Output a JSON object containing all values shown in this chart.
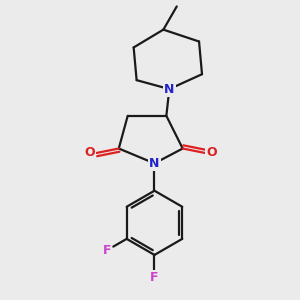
{
  "background_color": "#ebebeb",
  "bond_color": "#1a1a1a",
  "nitrogen_color": "#2222cc",
  "oxygen_color": "#dd2020",
  "fluorine_color": "#cc44cc",
  "bond_width": 1.6,
  "figsize": [
    3.0,
    3.0
  ],
  "dpi": 100,
  "xlim": [
    0,
    10
  ],
  "ylim": [
    0,
    10
  ],
  "font_size": 9.0
}
